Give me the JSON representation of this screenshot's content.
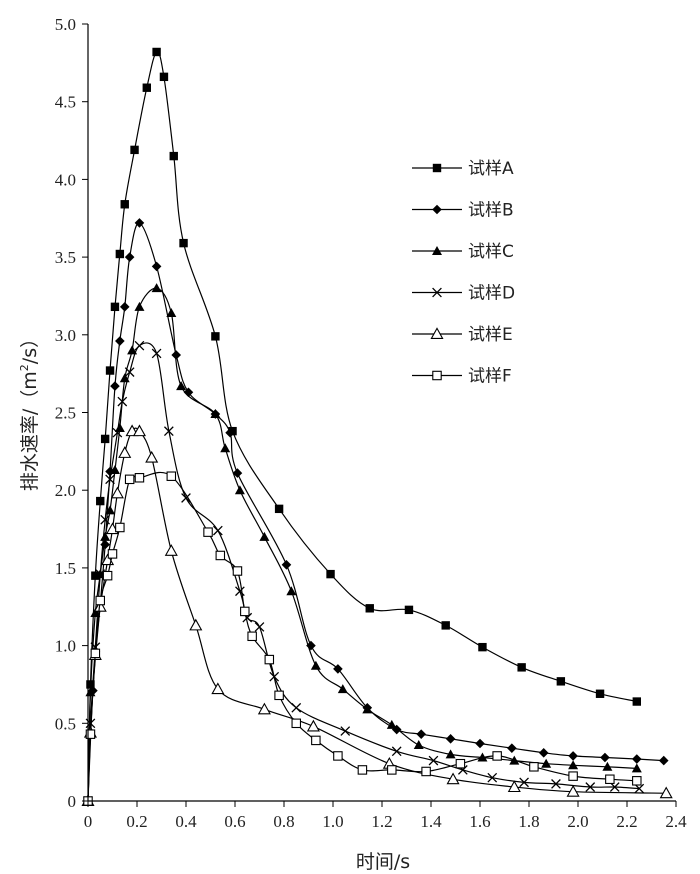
{
  "chart_data": {
    "type": "line",
    "xlabel": "时间/s",
    "ylabel_main": "排水速率/（m",
    "ylabel_sup": "2",
    "ylabel_tail": "/s）",
    "xlim": [
      0,
      2.4
    ],
    "ylim": [
      0,
      5.0
    ],
    "x_ticks": [
      "0",
      "0.2",
      "0.4",
      "0.6",
      "0.8",
      "1.0",
      "1.2",
      "1.4",
      "1.6",
      "1.8",
      "2.0",
      "2.2",
      "2.4"
    ],
    "y_ticks": [
      "0",
      "0.5",
      "1.0",
      "1.5",
      "2.0",
      "2.5",
      "3.0",
      "3.5",
      "4.0",
      "4.5",
      "5.0"
    ],
    "grid": false,
    "legend_position": "upper-right",
    "series": [
      {
        "name": "试样A",
        "marker": "filled-square",
        "x": [
          0,
          0.01,
          0.03,
          0.05,
          0.07,
          0.09,
          0.11,
          0.13,
          0.15,
          0.19,
          0.24,
          0.28,
          0.31,
          0.35,
          0.39,
          0.52,
          0.59,
          0.78,
          0.99,
          1.15,
          1.31,
          1.46,
          1.61,
          1.77,
          1.93,
          2.09,
          2.24
        ],
        "y": [
          0,
          0.75,
          1.45,
          1.93,
          2.33,
          2.77,
          3.18,
          3.52,
          3.84,
          4.19,
          4.59,
          4.82,
          4.66,
          4.15,
          3.59,
          2.99,
          2.38,
          1.88,
          1.46,
          1.24,
          1.23,
          1.13,
          0.99,
          0.86,
          0.77,
          0.69,
          0.64
        ]
      },
      {
        "name": "试样B",
        "marker": "filled-diamond",
        "x": [
          0,
          0.02,
          0.05,
          0.07,
          0.09,
          0.11,
          0.13,
          0.15,
          0.17,
          0.21,
          0.28,
          0.36,
          0.41,
          0.52,
          0.58,
          0.61,
          0.81,
          0.91,
          1.02,
          1.14,
          1.26,
          1.36,
          1.48,
          1.6,
          1.73,
          1.86,
          1.98,
          2.11,
          2.24,
          2.35
        ],
        "y": [
          0,
          0.71,
          1.27,
          1.65,
          2.12,
          2.67,
          2.96,
          3.18,
          3.5,
          3.72,
          3.44,
          2.87,
          2.63,
          2.49,
          2.37,
          2.11,
          1.52,
          1.0,
          0.85,
          0.6,
          0.46,
          0.43,
          0.4,
          0.37,
          0.34,
          0.31,
          0.29,
          0.28,
          0.27,
          0.26
        ]
      },
      {
        "name": "试样C",
        "marker": "filled-triangle",
        "x": [
          0,
          0.01,
          0.03,
          0.05,
          0.07,
          0.09,
          0.11,
          0.13,
          0.15,
          0.18,
          0.21,
          0.28,
          0.34,
          0.38,
          0.52,
          0.56,
          0.62,
          0.72,
          0.83,
          0.93,
          1.04,
          1.14,
          1.24,
          1.35,
          1.48,
          1.61,
          1.74,
          1.87,
          1.98,
          2.12,
          2.24
        ],
        "y": [
          0,
          0.7,
          1.21,
          1.46,
          1.7,
          1.87,
          2.13,
          2.4,
          2.72,
          2.9,
          3.18,
          3.3,
          3.14,
          2.67,
          2.49,
          2.27,
          2.0,
          1.7,
          1.35,
          0.87,
          0.72,
          0.59,
          0.49,
          0.36,
          0.3,
          0.28,
          0.26,
          0.24,
          0.23,
          0.22,
          0.21
        ]
      },
      {
        "name": "试样D",
        "marker": "x",
        "x": [
          0,
          0.01,
          0.03,
          0.05,
          0.07,
          0.09,
          0.12,
          0.14,
          0.17,
          0.21,
          0.28,
          0.33,
          0.4,
          0.53,
          0.62,
          0.65,
          0.7,
          0.76,
          0.85,
          1.05,
          1.26,
          1.41,
          1.53,
          1.65,
          1.78,
          1.91,
          2.05,
          2.15,
          2.25
        ],
        "y": [
          0,
          0.5,
          0.99,
          1.46,
          1.81,
          2.07,
          2.37,
          2.57,
          2.76,
          2.93,
          2.88,
          2.38,
          1.95,
          1.74,
          1.35,
          1.18,
          1.12,
          0.8,
          0.6,
          0.45,
          0.32,
          0.26,
          0.2,
          0.15,
          0.12,
          0.11,
          0.09,
          0.09,
          0.08
        ]
      },
      {
        "name": "试样E",
        "marker": "open-triangle",
        "x": [
          0,
          0.01,
          0.03,
          0.05,
          0.08,
          0.1,
          0.12,
          0.15,
          0.18,
          0.21,
          0.26,
          0.34,
          0.44,
          0.53,
          0.72,
          0.92,
          1.23,
          1.49,
          1.74,
          1.98,
          2.36
        ],
        "y": [
          0,
          0.44,
          0.94,
          1.25,
          1.55,
          1.75,
          1.98,
          2.24,
          2.38,
          2.38,
          2.21,
          1.61,
          1.13,
          0.72,
          0.59,
          0.48,
          0.24,
          0.14,
          0.09,
          0.06,
          0.05
        ]
      },
      {
        "name": "试样F",
        "marker": "open-square",
        "x": [
          0,
          0.01,
          0.03,
          0.05,
          0.08,
          0.1,
          0.13,
          0.17,
          0.21,
          0.34,
          0.49,
          0.54,
          0.61,
          0.64,
          0.67,
          0.74,
          0.78,
          0.85,
          0.93,
          1.02,
          1.12,
          1.24,
          1.38,
          1.52,
          1.67,
          1.82,
          1.98,
          2.13,
          2.24
        ],
        "y": [
          0,
          0.43,
          0.95,
          1.29,
          1.45,
          1.59,
          1.76,
          2.07,
          2.08,
          2.09,
          1.73,
          1.58,
          1.48,
          1.22,
          1.06,
          0.91,
          0.68,
          0.5,
          0.39,
          0.29,
          0.2,
          0.2,
          0.19,
          0.24,
          0.29,
          0.22,
          0.16,
          0.14,
          0.13
        ]
      }
    ]
  }
}
